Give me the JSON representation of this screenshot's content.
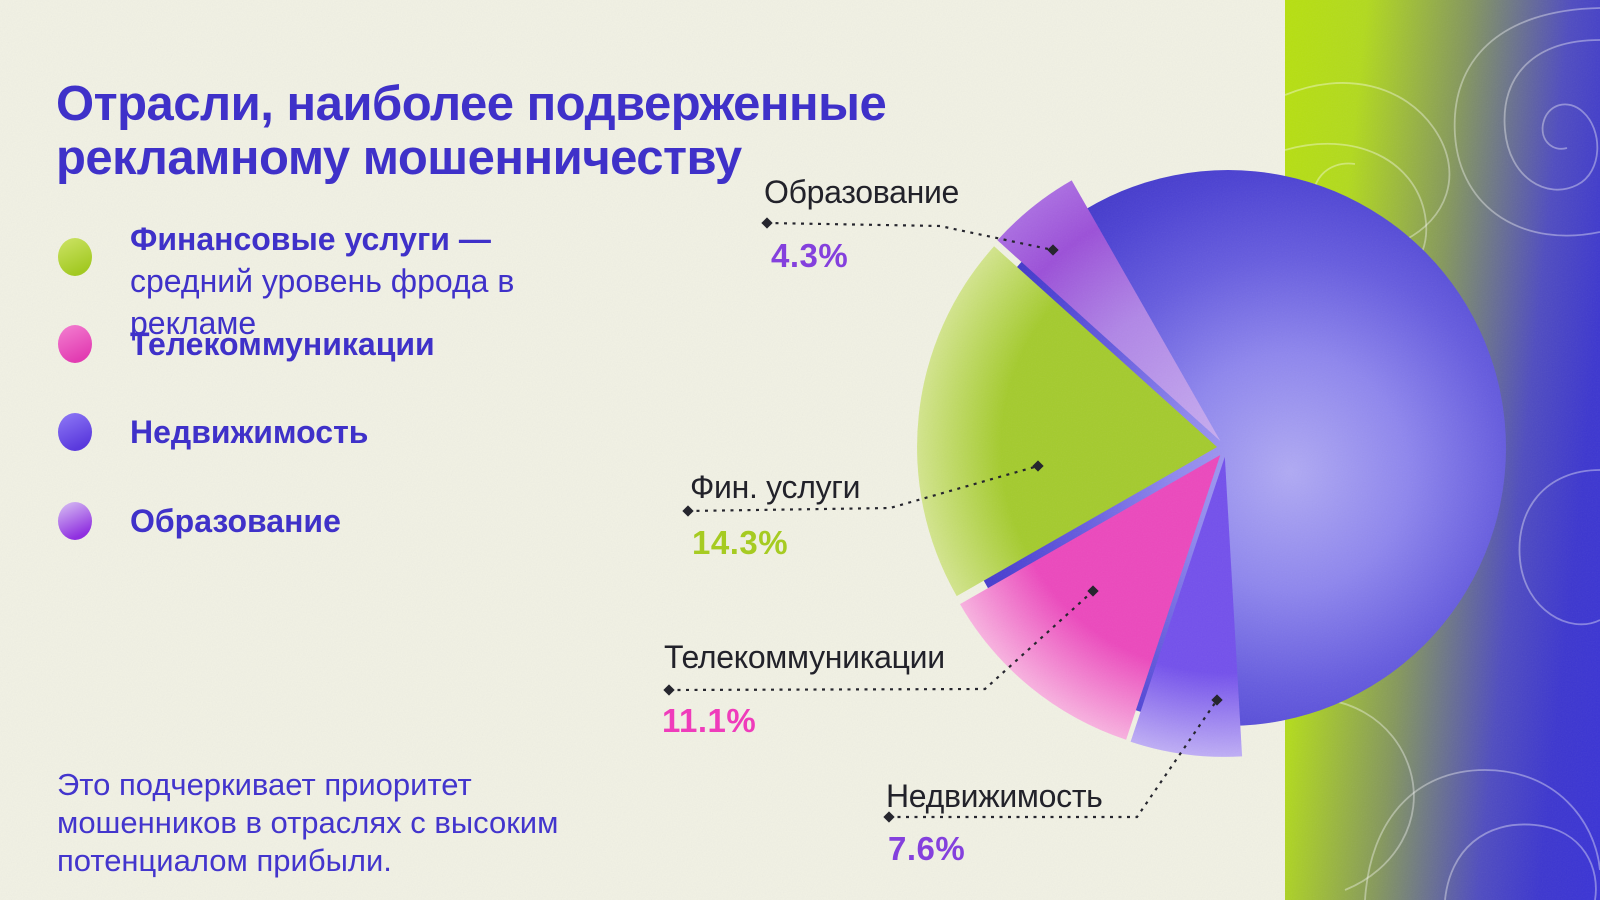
{
  "title": "Отрасли, наиболее подверженные рекламному мошенничеству",
  "legend": {
    "items": [
      {
        "id": "fin",
        "label_bold": "Финансовые услуги —",
        "label_rest": " средний уровень фрода в рекламе",
        "color": "#a2c922",
        "color_light": "#c9e160"
      },
      {
        "id": "telecom",
        "label_bold": "Телекоммуникации",
        "label_rest": "",
        "color": "#e23cb2",
        "color_light": "#f27ace"
      },
      {
        "id": "real",
        "label_bold": "Недвижимость",
        "label_rest": "",
        "color": "#5a39dd",
        "color_light": "#8a74f4"
      },
      {
        "id": "edu",
        "label_bold": "Образование",
        "label_rest": "",
        "color": "#8f2fe0",
        "color_light": "#d2b5f2"
      }
    ]
  },
  "footnote": "Это подчеркивает приоритет мошенников в отраслях с высоким потенциалом прибыли.",
  "chart_data": {
    "type": "pie",
    "title": "Отрасли, наиболее подверженные рекламному мошенничеству",
    "legend_position": "left",
    "slices": [
      {
        "id": "edu",
        "label": "Образование",
        "value": 4.3,
        "value_label": "4.3%",
        "color": "#9b4fd8",
        "color_light": "#cfaef0",
        "pct_color": "#8440dd"
      },
      {
        "id": "fin",
        "label": "Фин. услуги",
        "value": 14.3,
        "value_label": "14.3%",
        "color": "#a4cb2d",
        "color_light": "#d3e58d",
        "pct_color": "#a6cb22"
      },
      {
        "id": "telecom",
        "label": "Телекоммуникации",
        "value": 11.1,
        "value_label": "11.1%",
        "color": "#ec48bd",
        "color_light": "#f9b2e0",
        "pct_color": "#ef3cbb"
      },
      {
        "id": "real",
        "label": "Недвижимость",
        "value": 7.6,
        "value_label": "7.6%",
        "color": "#7350ec",
        "color_light": "#bfaef6",
        "pct_color": "#8440dd"
      },
      {
        "id": "rest",
        "label": "",
        "value": 62.7,
        "value_label": "",
        "color": "#5b51dd",
        "color_light": "#aba6f2",
        "pct_color": ""
      }
    ]
  },
  "colors": {
    "background": "#f1f1e4",
    "text_primary": "#3f31c9",
    "callout_text": "#22222a",
    "connector": "#26262e",
    "band_green": "#b7e00f",
    "band_blue": "#3a33d6",
    "sphere_highlight": "#b0aaf4",
    "sphere_edge": "#3b32c2"
  }
}
